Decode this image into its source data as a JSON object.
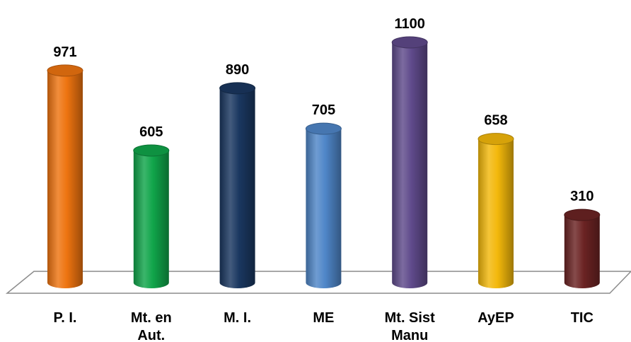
{
  "chart_data": {
    "type": "bar",
    "categories": [
      [
        "P. I."
      ],
      [
        "Mt. en",
        "Aut."
      ],
      [
        "M. I."
      ],
      [
        "ME"
      ],
      [
        "Mt. Sist",
        "Manu"
      ],
      [
        "AyEP"
      ],
      [
        "TIC"
      ]
    ],
    "values": [
      971,
      605,
      890,
      705,
      1100,
      658,
      310
    ],
    "value_labels": [
      "971",
      "605",
      "890",
      "705",
      "1100",
      "658",
      "310"
    ],
    "colors": [
      "#ee7410",
      "#10a54a",
      "#1a3760",
      "#4f86c8",
      "#5f4a8b",
      "#f3b80b",
      "#6b2323"
    ],
    "title": "",
    "xlabel": "",
    "ylabel": "",
    "ylim": [
      0,
      1100
    ],
    "grid": false,
    "legend": "none",
    "style": "3d-cylinder"
  }
}
